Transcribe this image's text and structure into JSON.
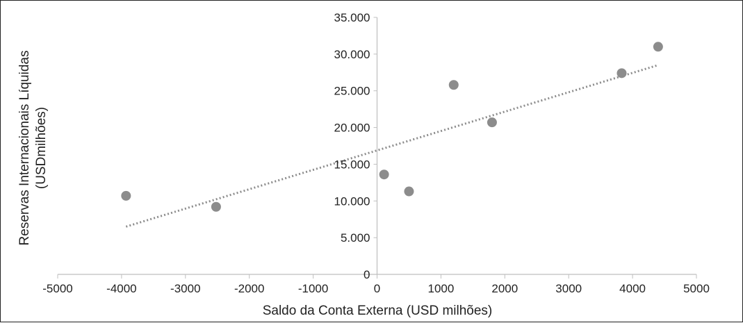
{
  "chart_data": {
    "type": "scatter",
    "title": "",
    "xlabel": "Saldo da Conta Externa (USD milhões)",
    "ylabel": [
      "Reservas Internacionais Líquidas",
      "(USDmilhões)"
    ],
    "xlim": [
      -5000,
      5000
    ],
    "ylim": [
      0,
      35000
    ],
    "x_ticks": [
      "-5000",
      "-4000",
      "-3000",
      "-2000",
      "-1000",
      "0",
      "1000",
      "2000",
      "3000",
      "4000",
      "5000"
    ],
    "y_ticks": [
      "0",
      "5.000",
      "10.000",
      "15.000",
      "20.000",
      "25.000",
      "30.000",
      "35.000"
    ],
    "points": [
      {
        "x": -3930,
        "y": 10700
      },
      {
        "x": -2520,
        "y": 9200
      },
      {
        "x": 110,
        "y": 13600
      },
      {
        "x": 500,
        "y": 11300
      },
      {
        "x": 1200,
        "y": 25800
      },
      {
        "x": 1800,
        "y": 20700
      },
      {
        "x": 3830,
        "y": 27400
      },
      {
        "x": 4400,
        "y": 31000
      }
    ],
    "trendline": {
      "type": "linear",
      "style": "dotted",
      "x_start": -3930,
      "y_start": 6500,
      "x_end": 4400,
      "y_end": 28500
    },
    "grid": false,
    "legend": "none",
    "colors": {
      "marker": "#8c8c8c",
      "trendline": "#8c8c8c",
      "axis": "#bfbfbf",
      "text": "#222222"
    }
  }
}
